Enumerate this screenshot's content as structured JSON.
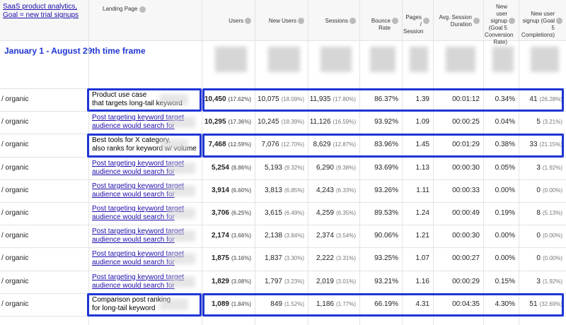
{
  "header": {
    "note": [
      "SaaS product analytics,",
      "Goal = new trial signups"
    ],
    "timeframe": "January 1 - August 29th time frame"
  },
  "table": {
    "columns": [
      [
        "Landing Page"
      ],
      [
        "Users"
      ],
      [
        "New Users"
      ],
      [
        "Sessions"
      ],
      [
        "Bounce Rate"
      ],
      [
        "Pages /",
        "Session"
      ],
      [
        "Avg. Session",
        "Duration"
      ],
      [
        "New user",
        "signup",
        "(Goal 5",
        "Conversion",
        "Rate)"
      ],
      [
        "New user",
        "signup (Goal 5",
        "Completions)"
      ]
    ],
    "rows": [
      {
        "source": "/ organic",
        "highlight": true,
        "landing": [
          "Product use case",
          "that targets long-tail keyword"
        ],
        "cells": [
          [
            "10,450",
            "(17.62%)"
          ],
          [
            "10,075",
            "(18.09%)"
          ],
          [
            "11,935",
            "(17.80%)"
          ],
          [
            "86.37%"
          ],
          [
            "1.39"
          ],
          [
            "00:01:12"
          ],
          [
            "0.34%"
          ],
          [
            "41",
            "(26.28%)"
          ]
        ]
      },
      {
        "source": "/ organic",
        "highlight": false,
        "landing": [
          "Post targeting keyword target",
          "audience would search for"
        ],
        "cells": [
          [
            "10,295",
            "(17.36%)"
          ],
          [
            "10,245",
            "(18.39%)"
          ],
          [
            "11,126",
            "(16.59%)"
          ],
          [
            "93.92%"
          ],
          [
            "1.09"
          ],
          [
            "00:00:25"
          ],
          [
            "0.04%"
          ],
          [
            "5",
            "(3.21%)"
          ]
        ]
      },
      {
        "source": "/ organic",
        "highlight": true,
        "landing": [
          "Best tools for X category,",
          "also ranks for keyword w/ volume"
        ],
        "cells": [
          [
            "7,468",
            "(12.59%)"
          ],
          [
            "7,076",
            "(12.70%)"
          ],
          [
            "8,629",
            "(12.87%)"
          ],
          [
            "83.96%"
          ],
          [
            "1.45"
          ],
          [
            "00:01:29"
          ],
          [
            "0.38%"
          ],
          [
            "33",
            "(21.15%)"
          ]
        ]
      },
      {
        "source": "/ organic",
        "highlight": false,
        "landing": [
          "Post targeting keyword target",
          "audience would search for"
        ],
        "cells": [
          [
            "5,254",
            "(8.86%)"
          ],
          [
            "5,193",
            "(9.32%)"
          ],
          [
            "6,290",
            "(9.38%)"
          ],
          [
            "93.69%"
          ],
          [
            "1.13"
          ],
          [
            "00:00:30"
          ],
          [
            "0.05%"
          ],
          [
            "3",
            "(1.92%)"
          ]
        ]
      },
      {
        "source": "/ organic",
        "highlight": false,
        "landing": [
          "Post targeting keyword target",
          "audience would search for"
        ],
        "cells": [
          [
            "3,914",
            "(6.60%)"
          ],
          [
            "3,813",
            "(6.85%)"
          ],
          [
            "4,243",
            "(6.33%)"
          ],
          [
            "93.26%"
          ],
          [
            "1.11"
          ],
          [
            "00:00:33"
          ],
          [
            "0.00%"
          ],
          [
            "0",
            "(0.00%)"
          ]
        ]
      },
      {
        "source": "/ organic",
        "highlight": false,
        "landing": [
          "Post targeting keyword target",
          "audience would search for"
        ],
        "cells": [
          [
            "3,706",
            "(6.25%)"
          ],
          [
            "3,615",
            "(6.49%)"
          ],
          [
            "4,259",
            "(6.35%)"
          ],
          [
            "89.53%"
          ],
          [
            "1.24"
          ],
          [
            "00:00:49"
          ],
          [
            "0.19%"
          ],
          [
            "8",
            "(5.13%)"
          ]
        ]
      },
      {
        "source": "/ organic",
        "highlight": false,
        "landing": [
          "Post targeting keyword target",
          "audience would search for"
        ],
        "cells": [
          [
            "2,174",
            "(3.66%)"
          ],
          [
            "2,138",
            "(3.84%)"
          ],
          [
            "2,374",
            "(3.54%)"
          ],
          [
            "90.06%"
          ],
          [
            "1.21"
          ],
          [
            "00:00:30"
          ],
          [
            "0.00%"
          ],
          [
            "0",
            "(0.00%)"
          ]
        ]
      },
      {
        "source": "/ organic",
        "highlight": false,
        "landing": [
          "Post targeting keyword target",
          "audience would search for"
        ],
        "cells": [
          [
            "1,875",
            "(3.16%)"
          ],
          [
            "1,837",
            "(3.30%)"
          ],
          [
            "2,222",
            "(3.31%)"
          ],
          [
            "93.25%"
          ],
          [
            "1.07"
          ],
          [
            "00:00:27"
          ],
          [
            "0.00%"
          ],
          [
            "0",
            "(0.00%)"
          ]
        ]
      },
      {
        "source": "/ organic",
        "highlight": false,
        "landing": [
          "Post targeting keyword target",
          "audience would search for"
        ],
        "cells": [
          [
            "1,829",
            "(3.08%)"
          ],
          [
            "1,797",
            "(3.23%)"
          ],
          [
            "2,019",
            "(3.01%)"
          ],
          [
            "93.21%"
          ],
          [
            "1.16"
          ],
          [
            "00:00:29"
          ],
          [
            "0.15%"
          ],
          [
            "3",
            "(1.92%)"
          ]
        ]
      },
      {
        "source": "/ organic",
        "highlight": true,
        "landing": [
          "Comparison post ranking",
          "for long-tail keyword"
        ],
        "cells": [
          [
            "1,089",
            "(1.84%)"
          ],
          [
            "849",
            "(1.52%)"
          ],
          [
            "1,186",
            "(1.77%)"
          ],
          [
            "66.19%"
          ],
          [
            "4.31"
          ],
          [
            "00:04:35"
          ],
          [
            "4.30%"
          ],
          [
            "51",
            "(32.69%)"
          ]
        ]
      }
    ]
  }
}
